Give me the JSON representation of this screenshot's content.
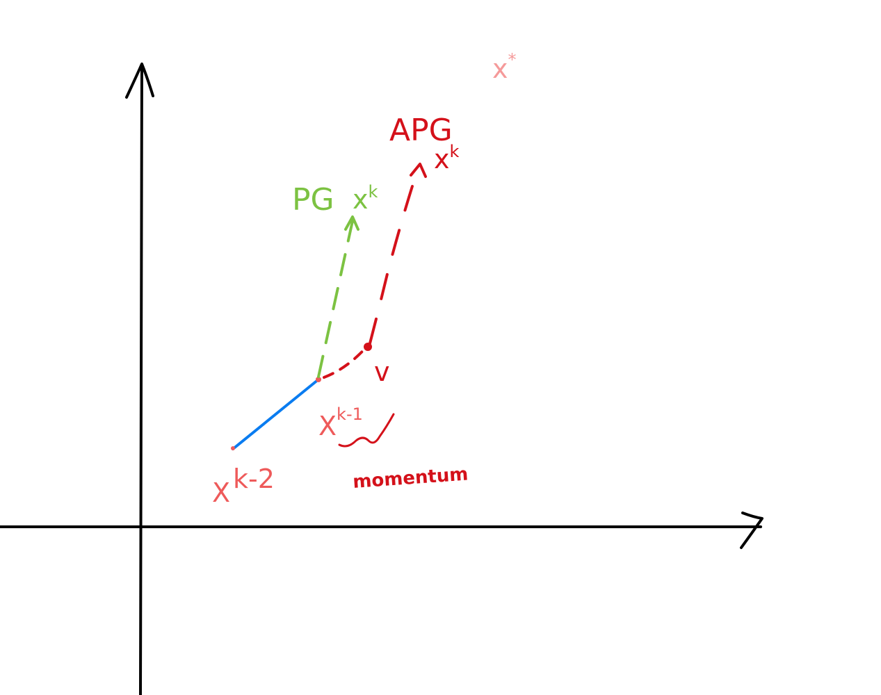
{
  "colors": {
    "axis": "#000000",
    "pg": "#7cc242",
    "apg": "#d4111a",
    "point_label": "#ee5a5a",
    "x_star": "#f59a9a",
    "history": "#0a7cf0"
  },
  "labels": {
    "x_star": {
      "base": "x",
      "sup": "*"
    },
    "apg": "APG",
    "apg_xk": {
      "base": "x",
      "sup": "k"
    },
    "pg": "PG",
    "pg_xk": {
      "base": "x",
      "sup": "k"
    },
    "v": "v",
    "xk1": {
      "base": "X",
      "sup": "k-1"
    },
    "xk2": {
      "base": "X",
      "sup": "k-2"
    },
    "momentum": "momentum"
  }
}
